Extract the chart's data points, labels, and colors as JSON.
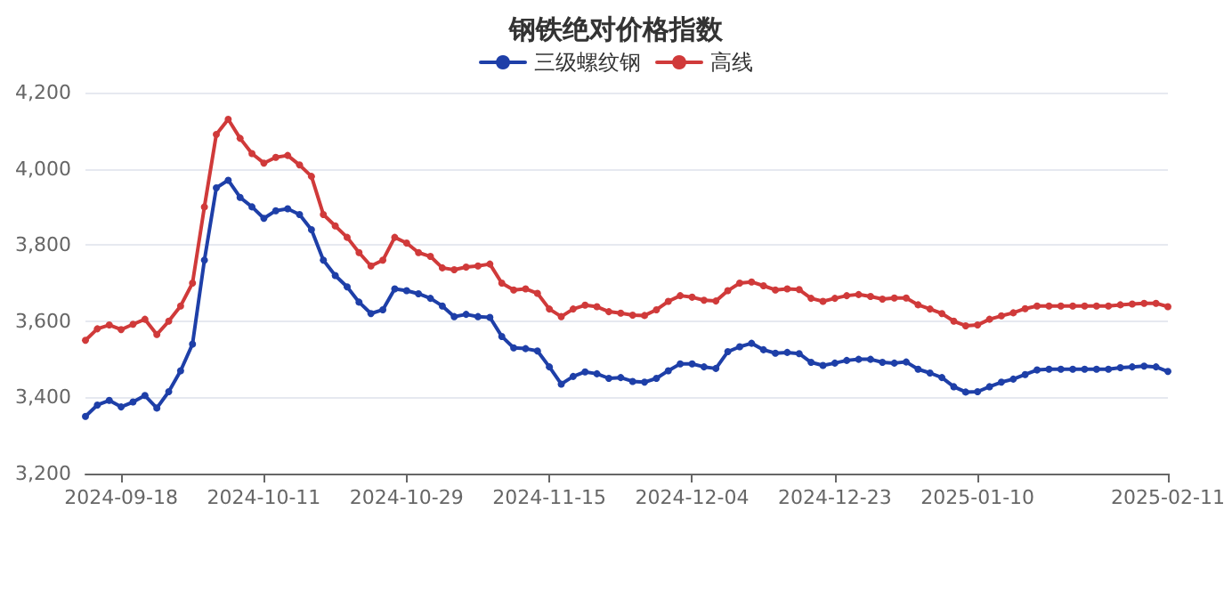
{
  "chart_data": {
    "type": "line",
    "title": "钢铁绝对价格指数",
    "categories": [
      null,
      null,
      null,
      "2024-09-18",
      null,
      null,
      null,
      null,
      null,
      null,
      null,
      null,
      null,
      null,
      null,
      "2024-10-11",
      null,
      null,
      null,
      null,
      null,
      null,
      null,
      null,
      null,
      null,
      null,
      "2024-10-29",
      null,
      null,
      null,
      null,
      null,
      null,
      null,
      null,
      null,
      null,
      null,
      "2024-11-15",
      null,
      null,
      null,
      null,
      null,
      null,
      null,
      null,
      null,
      null,
      null,
      "2024-12-04",
      null,
      null,
      null,
      null,
      null,
      null,
      null,
      null,
      null,
      null,
      null,
      "2024-12-23",
      null,
      null,
      null,
      null,
      null,
      null,
      null,
      null,
      null,
      null,
      null,
      "2025-01-10",
      null,
      null,
      null,
      null,
      null,
      null,
      null,
      null,
      null,
      null,
      null,
      null,
      null,
      null,
      null,
      "2025-02-11"
    ],
    "series": [
      {
        "name": "三级螺纹钢",
        "color": "#1e3fa8",
        "values": [
          3350,
          3380,
          3392,
          3375,
          3388,
          3405,
          3372,
          3415,
          3470,
          3540,
          3760,
          3950,
          3970,
          3925,
          3900,
          3870,
          3890,
          3895,
          3880,
          3840,
          3760,
          3720,
          3690,
          3650,
          3620,
          3630,
          3685,
          3680,
          3672,
          3660,
          3640,
          3612,
          3618,
          3612,
          3610,
          3560,
          3530,
          3528,
          3522,
          3480,
          3435,
          3455,
          3467,
          3462,
          3450,
          3452,
          3442,
          3440,
          3450,
          3470,
          3488,
          3488,
          3480,
          3476,
          3520,
          3533,
          3542,
          3525,
          3516,
          3518,
          3515,
          3492,
          3484,
          3490,
          3497,
          3500,
          3500,
          3492,
          3490,
          3493,
          3474,
          3464,
          3452,
          3428,
          3414,
          3415,
          3428,
          3440,
          3448,
          3460,
          3472,
          3474,
          3474,
          3474,
          3474,
          3474,
          3474,
          3478,
          3480,
          3482,
          3480,
          3468
        ]
      },
      {
        "name": "高线",
        "color": "#d03a3a",
        "values": [
          3550,
          3580,
          3590,
          3578,
          3592,
          3605,
          3565,
          3600,
          3640,
          3700,
          3900,
          4090,
          4130,
          4080,
          4040,
          4015,
          4030,
          4035,
          4010,
          3980,
          3880,
          3850,
          3820,
          3780,
          3745,
          3760,
          3820,
          3805,
          3780,
          3770,
          3740,
          3735,
          3742,
          3745,
          3750,
          3700,
          3682,
          3685,
          3673,
          3632,
          3612,
          3632,
          3642,
          3638,
          3625,
          3621,
          3616,
          3615,
          3630,
          3652,
          3667,
          3663,
          3655,
          3653,
          3680,
          3700,
          3703,
          3693,
          3682,
          3685,
          3683,
          3660,
          3652,
          3660,
          3667,
          3670,
          3665,
          3658,
          3661,
          3661,
          3643,
          3632,
          3620,
          3600,
          3588,
          3590,
          3605,
          3614,
          3622,
          3633,
          3640,
          3640,
          3640,
          3640,
          3640,
          3640,
          3640,
          3643,
          3645,
          3647,
          3647,
          3638
        ]
      }
    ],
    "ylim": [
      3200,
      4200
    ],
    "yticks": [
      {
        "value": 3200,
        "label": "3,200"
      },
      {
        "value": 3400,
        "label": "3,400"
      },
      {
        "value": 3600,
        "label": "3,600"
      },
      {
        "value": 3800,
        "label": "3,800"
      },
      {
        "value": 4000,
        "label": "4,000"
      },
      {
        "value": 4200,
        "label": "4,200"
      }
    ],
    "grid": "y",
    "legend": "top",
    "marker": "circle",
    "line_style": "solid"
  }
}
